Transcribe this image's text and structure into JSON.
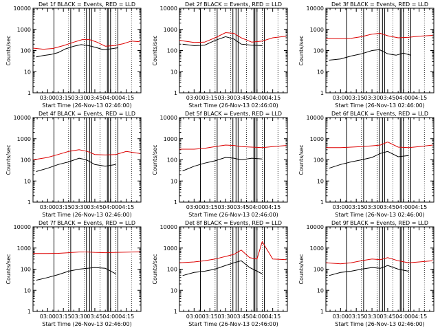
{
  "chart_data": [
    {
      "type": "line",
      "title": "Det 1f BLACK = Events, RED = LLD",
      "xlabel": "Start Time (26-Nov-13 02:46:00)",
      "ylabel": "Counts/sec",
      "ylim": [
        1,
        10000
      ],
      "xlim": [
        "02:46",
        "04:29"
      ],
      "x_ticks": [
        "03:00",
        "03:15",
        "03:30",
        "03:45",
        "04:00",
        "04:15"
      ],
      "y_ticks": [
        "1",
        "10",
        "100",
        "1000",
        "10000"
      ],
      "y_scale": "log",
      "series": [
        {
          "name": "Events",
          "color": "#000000",
          "x": [
            "02:49",
            "02:56",
            "03:03",
            "03:10",
            "03:17",
            "03:25",
            "03:32",
            "03:39",
            "03:46",
            "03:53",
            "04:00",
            "04:07"
          ],
          "y": [
            50,
            58,
            65,
            80,
            120,
            160,
            190,
            170,
            140,
            110,
            120,
            135
          ]
        },
        {
          "name": "LLD",
          "color": "#dd0000",
          "x": [
            "02:46",
            "02:56",
            "03:05",
            "03:15",
            "03:25",
            "03:33",
            "03:40",
            "03:47",
            "03:55",
            "04:03",
            "04:12",
            "04:20",
            "04:28"
          ],
          "y": [
            130,
            115,
            125,
            170,
            250,
            330,
            330,
            250,
            160,
            170,
            210,
            280,
            260
          ]
        }
      ]
    },
    {
      "type": "line",
      "title": "Det 2f BLACK = Events, RED = LLD",
      "xlabel": "Start Time (26-Nov-13 02:46:00)",
      "ylabel": "Counts/sec",
      "ylim": [
        1,
        10000
      ],
      "xlim": [
        "02:46",
        "04:29"
      ],
      "x_ticks": [
        "03:00",
        "03:15",
        "03:30",
        "03:45",
        "04:00",
        "04:15"
      ],
      "y_ticks": [
        "1",
        "10",
        "100",
        "1000",
        "10000"
      ],
      "y_scale": "log",
      "series": [
        {
          "name": "Events",
          "color": "#000000",
          "x": [
            "02:49",
            "03:00",
            "03:10",
            "03:20",
            "03:30",
            "03:38",
            "03:45",
            "03:55",
            "04:05"
          ],
          "y": [
            200,
            170,
            180,
            300,
            450,
            350,
            200,
            180,
            170
          ]
        },
        {
          "name": "LLD",
          "color": "#dd0000",
          "x": [
            "02:46",
            "03:00",
            "03:10",
            "03:20",
            "03:30",
            "03:38",
            "03:45",
            "03:55",
            "04:05",
            "04:15",
            "04:28"
          ],
          "y": [
            300,
            240,
            250,
            400,
            700,
            650,
            400,
            250,
            280,
            400,
            480
          ]
        }
      ]
    },
    {
      "type": "line",
      "title": "Det 3f BLACK = Events, RED = LLD",
      "xlabel": "Start Time (26-Nov-13 02:46:00)",
      "ylabel": "Counts/sec",
      "ylim": [
        1,
        10000
      ],
      "xlim": [
        "02:46",
        "04:29"
      ],
      "x_ticks": [
        "03:00",
        "03:15",
        "03:30",
        "03:45",
        "04:00",
        "04:15"
      ],
      "y_ticks": [
        "1",
        "10",
        "100",
        "1000",
        "10000"
      ],
      "y_scale": "log",
      "series": [
        {
          "name": "Events",
          "color": "#000000",
          "x": [
            "02:49",
            "03:00",
            "03:10",
            "03:20",
            "03:30",
            "03:37",
            "03:45",
            "03:53",
            "04:00",
            "04:07"
          ],
          "y": [
            35,
            40,
            55,
            70,
            100,
            110,
            70,
            60,
            75,
            60
          ]
        },
        {
          "name": "LLD",
          "color": "#dd0000",
          "x": [
            "02:46",
            "03:00",
            "03:10",
            "03:20",
            "03:30",
            "03:38",
            "03:45",
            "03:55",
            "04:05",
            "04:15",
            "04:28"
          ],
          "y": [
            380,
            360,
            380,
            450,
            600,
            650,
            500,
            400,
            420,
            480,
            520
          ]
        }
      ]
    },
    {
      "type": "line",
      "title": "Det 4f BLACK = Events, RED = LLD",
      "xlabel": "Start Time (26-Nov-13 02:46:00)",
      "ylabel": "Counts/sec",
      "ylim": [
        1,
        10000
      ],
      "xlim": [
        "02:46",
        "04:29"
      ],
      "x_ticks": [
        "03:00",
        "03:15",
        "03:30",
        "03:45",
        "04:00",
        "04:15"
      ],
      "y_ticks": [
        "1",
        "10",
        "100",
        "1000",
        "10000"
      ],
      "y_scale": "log",
      "series": [
        {
          "name": "Events",
          "color": "#000000",
          "x": [
            "02:49",
            "03:00",
            "03:10",
            "03:20",
            "03:30",
            "03:37",
            "03:45",
            "03:55",
            "04:05"
          ],
          "y": [
            28,
            40,
            60,
            80,
            120,
            100,
            60,
            50,
            60
          ]
        },
        {
          "name": "LLD",
          "color": "#dd0000",
          "x": [
            "02:46",
            "03:00",
            "03:10",
            "03:20",
            "03:30",
            "03:38",
            "03:45",
            "03:55",
            "04:05",
            "04:15",
            "04:28"
          ],
          "y": [
            100,
            130,
            180,
            250,
            300,
            250,
            180,
            170,
            180,
            250,
            200
          ]
        }
      ]
    },
    {
      "type": "line",
      "title": "Det 5f BLACK = Events, RED = LLD",
      "xlabel": "Start Time (26-Nov-13 02:46:00)",
      "ylabel": "Counts/sec",
      "ylim": [
        1,
        10000
      ],
      "xlim": [
        "02:46",
        "04:29"
      ],
      "x_ticks": [
        "03:00",
        "03:15",
        "03:30",
        "03:45",
        "04:00",
        "04:15"
      ],
      "y_ticks": [
        "1",
        "10",
        "100",
        "1000",
        "10000"
      ],
      "y_scale": "log",
      "series": [
        {
          "name": "Events",
          "color": "#000000",
          "x": [
            "02:49",
            "03:00",
            "03:10",
            "03:20",
            "03:30",
            "03:38",
            "03:45",
            "03:55",
            "04:05"
          ],
          "y": [
            30,
            50,
            70,
            90,
            130,
            120,
            100,
            120,
            110
          ]
        },
        {
          "name": "LLD",
          "color": "#dd0000",
          "x": [
            "02:46",
            "03:00",
            "03:10",
            "03:20",
            "03:30",
            "03:38",
            "03:45",
            "03:55",
            "04:05",
            "04:15",
            "04:28"
          ],
          "y": [
            320,
            320,
            350,
            420,
            500,
            480,
            420,
            400,
            380,
            420,
            480
          ]
        }
      ]
    },
    {
      "type": "line",
      "title": "Det 6f BLACK = Events, RED = LLD",
      "xlabel": "Start Time (26-Nov-13 02:46:00)",
      "ylabel": "Counts/sec",
      "ylim": [
        1,
        10000
      ],
      "xlim": [
        "02:46",
        "04:29"
      ],
      "x_ticks": [
        "03:00",
        "03:15",
        "03:30",
        "03:45",
        "04:00",
        "04:15"
      ],
      "y_ticks": [
        "1",
        "10",
        "100",
        "1000",
        "10000"
      ],
      "y_scale": "log",
      "series": [
        {
          "name": "Events",
          "color": "#000000",
          "x": [
            "02:49",
            "03:00",
            "03:10",
            "03:20",
            "03:30",
            "03:38",
            "03:45",
            "03:55",
            "04:05"
          ],
          "y": [
            40,
            60,
            80,
            100,
            130,
            200,
            250,
            140,
            160
          ]
        },
        {
          "name": "LLD",
          "color": "#dd0000",
          "x": [
            "02:46",
            "03:00",
            "03:10",
            "03:20",
            "03:30",
            "03:38",
            "03:45",
            "03:55",
            "04:05",
            "04:15",
            "04:28"
          ],
          "y": [
            380,
            380,
            400,
            420,
            460,
            500,
            700,
            400,
            380,
            420,
            500
          ]
        }
      ]
    },
    {
      "type": "line",
      "title": "Det 7f BLACK = Events, RED = LLD",
      "xlabel": "Start Time (26-Nov-13 02:46:00)",
      "ylabel": "Counts/sec",
      "ylim": [
        1,
        10000
      ],
      "xlim": [
        "02:46",
        "04:29"
      ],
      "x_ticks": [
        "03:00",
        "03:15",
        "03:30",
        "03:45",
        "04:00",
        "04:15"
      ],
      "y_ticks": [
        "1",
        "10",
        "100",
        "1000",
        "10000"
      ],
      "y_scale": "log",
      "series": [
        {
          "name": "Events",
          "color": "#000000",
          "x": [
            "02:49",
            "03:00",
            "03:10",
            "03:20",
            "03:30",
            "03:38",
            "03:45",
            "03:55",
            "04:05"
          ],
          "y": [
            30,
            40,
            55,
            80,
            100,
            110,
            120,
            110,
            60
          ]
        },
        {
          "name": "LLD",
          "color": "#dd0000",
          "x": [
            "02:46",
            "03:00",
            "03:10",
            "03:20",
            "03:30",
            "03:38",
            "03:45",
            "03:55",
            "04:05",
            "04:15",
            "04:28"
          ],
          "y": [
            550,
            550,
            560,
            600,
            650,
            650,
            620,
            600,
            620,
            640,
            660
          ]
        }
      ]
    },
    {
      "type": "line",
      "title": "Det 8f BLACK = Events, RED = LLD",
      "xlabel": "Start Time (26-Nov-13 02:46:00)",
      "ylabel": "Counts/sec",
      "ylim": [
        1,
        10000
      ],
      "xlim": [
        "02:46",
        "04:29"
      ],
      "x_ticks": [
        "03:00",
        "03:15",
        "03:30",
        "03:45",
        "04:00",
        "04:15"
      ],
      "y_ticks": [
        "1",
        "10",
        "100",
        "1000",
        "10000"
      ],
      "y_scale": "log",
      "series": [
        {
          "name": "Events",
          "color": "#000000",
          "x": [
            "02:49",
            "03:00",
            "03:10",
            "03:20",
            "03:30",
            "03:38",
            "03:45",
            "03:53",
            "04:00",
            "04:05"
          ],
          "y": [
            50,
            70,
            80,
            100,
            150,
            200,
            250,
            120,
            80,
            60
          ]
        },
        {
          "name": "LLD",
          "color": "#dd0000",
          "x": [
            "02:46",
            "03:00",
            "03:10",
            "03:20",
            "03:30",
            "03:38",
            "03:45",
            "03:53",
            "04:00",
            "04:05",
            "04:15",
            "04:28"
          ],
          "y": [
            200,
            220,
            250,
            300,
            400,
            500,
            800,
            350,
            300,
            2000,
            300,
            280
          ]
        }
      ]
    },
    {
      "type": "line",
      "title": "Det 9f BLACK = Events, RED = LLD",
      "xlabel": "Start Time (26-Nov-13 02:46:00)",
      "ylabel": "Counts/sec",
      "ylim": [
        1,
        10000
      ],
      "xlim": [
        "02:46",
        "04:29"
      ],
      "x_ticks": [
        "03:00",
        "03:15",
        "03:30",
        "03:45",
        "04:00",
        "04:15"
      ],
      "y_ticks": [
        "1",
        "10",
        "100",
        "1000",
        "10000"
      ],
      "y_scale": "log",
      "series": [
        {
          "name": "Events",
          "color": "#000000",
          "x": [
            "02:49",
            "03:00",
            "03:10",
            "03:20",
            "03:30",
            "03:38",
            "03:45",
            "03:55",
            "04:05"
          ],
          "y": [
            50,
            70,
            80,
            100,
            120,
            110,
            150,
            100,
            80
          ]
        },
        {
          "name": "LLD",
          "color": "#dd0000",
          "x": [
            "02:46",
            "03:00",
            "03:10",
            "03:20",
            "03:30",
            "03:38",
            "03:45",
            "03:55",
            "04:05",
            "04:15",
            "04:28"
          ],
          "y": [
            200,
            180,
            200,
            250,
            300,
            280,
            350,
            250,
            200,
            220,
            250
          ]
        }
      ]
    }
  ]
}
